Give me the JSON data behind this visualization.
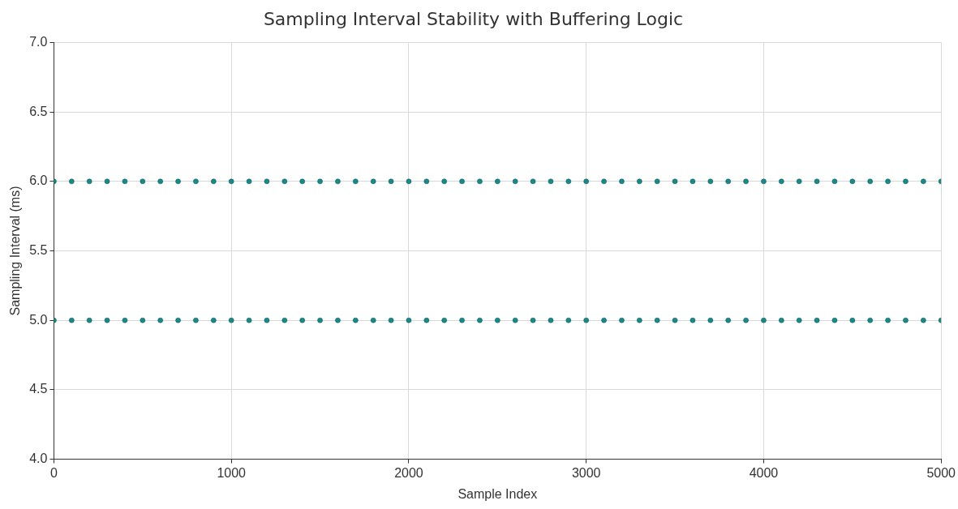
{
  "chart_data": {
    "type": "scatter",
    "title": "Sampling Interval Stability with Buffering Logic",
    "xlabel": "Sample Index",
    "ylabel": "Sampling Interval (ms)",
    "xlim": [
      0,
      5000
    ],
    "xticks": [
      0,
      1000,
      2000,
      3000,
      4000,
      5000
    ],
    "ylim": [
      4.0,
      7.0
    ],
    "yticks": [
      {
        "value": 4,
        "label": "4.0"
      },
      {
        "value": 4.5,
        "label": "4.5"
      },
      {
        "value": 5,
        "label": "5.0"
      },
      {
        "value": 5.5,
        "label": "5.5"
      },
      {
        "value": 6,
        "label": "6.0"
      },
      {
        "value": 6.5,
        "label": "6.5"
      },
      {
        "value": 7,
        "label": "7.0"
      }
    ],
    "grid": true,
    "marker": "circle",
    "series": [
      {
        "color": "#178a8a",
        "x": [
          0,
          100,
          200,
          300,
          400,
          500,
          600,
          700,
          800,
          900,
          1000,
          1100,
          1200,
          1300,
          1400,
          1500,
          1600,
          1700,
          1800,
          1900,
          2000,
          2100,
          2200,
          2300,
          2400,
          2500,
          2600,
          2700,
          2800,
          2900,
          3000,
          3100,
          3200,
          3300,
          3400,
          3500,
          3600,
          3700,
          3800,
          3900,
          4000,
          4100,
          4200,
          4300,
          4400,
          4500,
          4600,
          4700,
          4800,
          4900,
          5000
        ],
        "values": [
          6,
          6,
          6,
          6,
          6,
          6,
          6,
          6,
          6,
          6,
          6,
          6,
          6,
          6,
          6,
          6,
          6,
          6,
          6,
          6,
          6,
          6,
          6,
          6,
          6,
          6,
          6,
          6,
          6,
          6,
          6,
          6,
          6,
          6,
          6,
          6,
          6,
          6,
          6,
          6,
          6,
          6,
          6,
          6,
          6,
          6,
          6,
          6,
          6,
          6,
          6
        ]
      },
      {
        "color": "#178a8a",
        "x": [
          0,
          100,
          200,
          300,
          400,
          500,
          600,
          700,
          800,
          900,
          1000,
          1100,
          1200,
          1300,
          1400,
          1500,
          1600,
          1700,
          1800,
          1900,
          2000,
          2100,
          2200,
          2300,
          2400,
          2500,
          2600,
          2700,
          2800,
          2900,
          3000,
          3100,
          3200,
          3300,
          3400,
          3500,
          3600,
          3700,
          3800,
          3900,
          4000,
          4100,
          4200,
          4300,
          4400,
          4500,
          4600,
          4700,
          4800,
          4900,
          5000
        ],
        "values": [
          5,
          5,
          5,
          5,
          5,
          5,
          5,
          5,
          5,
          5,
          5,
          5,
          5,
          5,
          5,
          5,
          5,
          5,
          5,
          5,
          5,
          5,
          5,
          5,
          5,
          5,
          5,
          5,
          5,
          5,
          5,
          5,
          5,
          5,
          5,
          5,
          5,
          5,
          5,
          5,
          5,
          5,
          5,
          5,
          5,
          5,
          5,
          5,
          5,
          5,
          5
        ]
      }
    ]
  }
}
